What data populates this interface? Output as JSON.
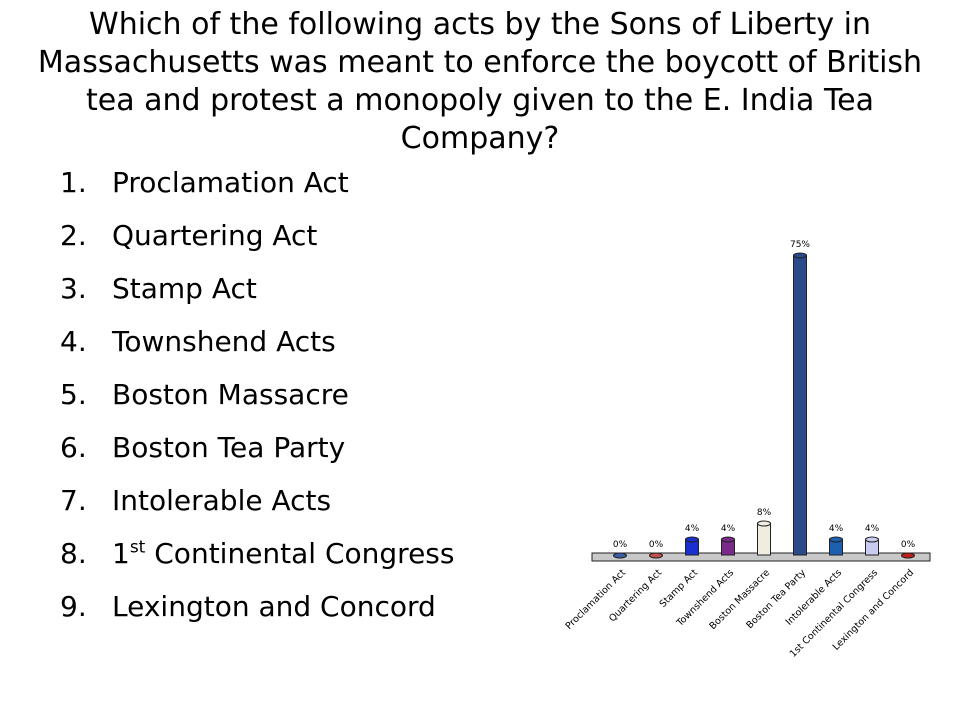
{
  "question": "Which of the following acts by the Sons of Liberty in Massachusetts was meant to enforce the boycott of British tea and protest a monopoly given to the E. India Tea Company?",
  "answers": [
    {
      "num": "1.",
      "text": "Proclamation Act"
    },
    {
      "num": "2.",
      "text": "Quartering Act"
    },
    {
      "num": "3.",
      "text": "Stamp Act"
    },
    {
      "num": "4.",
      "text": "Townshend Acts"
    },
    {
      "num": "5.",
      "text": "Boston Massacre"
    },
    {
      "num": "6.",
      "text": "Boston Tea Party"
    },
    {
      "num": "7.",
      "text": "Intolerable Acts"
    },
    {
      "num": "8.",
      "text_pre": "1",
      "text_sup": "st",
      "text_post": " Continental Congress"
    },
    {
      "num": "9.",
      "text": "Lexington and Concord"
    }
  ],
  "chart_data": {
    "type": "bar",
    "categories": [
      "Proclamation Act",
      "Quartering Act",
      "Stamp Act",
      "Townshend Acts",
      "Boston Massacre",
      "Boston Tea Party",
      "Intolerable Acts",
      "1st Continental Congress",
      "Lexington and Concord"
    ],
    "values": [
      0,
      0,
      4,
      4,
      8,
      75,
      4,
      4,
      0
    ],
    "data_labels": [
      "0%",
      "0%",
      "4%",
      "4%",
      "8%",
      "75%",
      "4%",
      "4%",
      "0%"
    ],
    "ylim": [
      0,
      75
    ],
    "grid": false,
    "legend": "none",
    "colors": [
      "#3a5fa8",
      "#c0504d",
      "#1a2fd0",
      "#7b2a8c",
      "#f0ece0",
      "#2a4a8a",
      "#1f5fb0",
      "#c8ccf0",
      "#c0201a"
    ]
  }
}
